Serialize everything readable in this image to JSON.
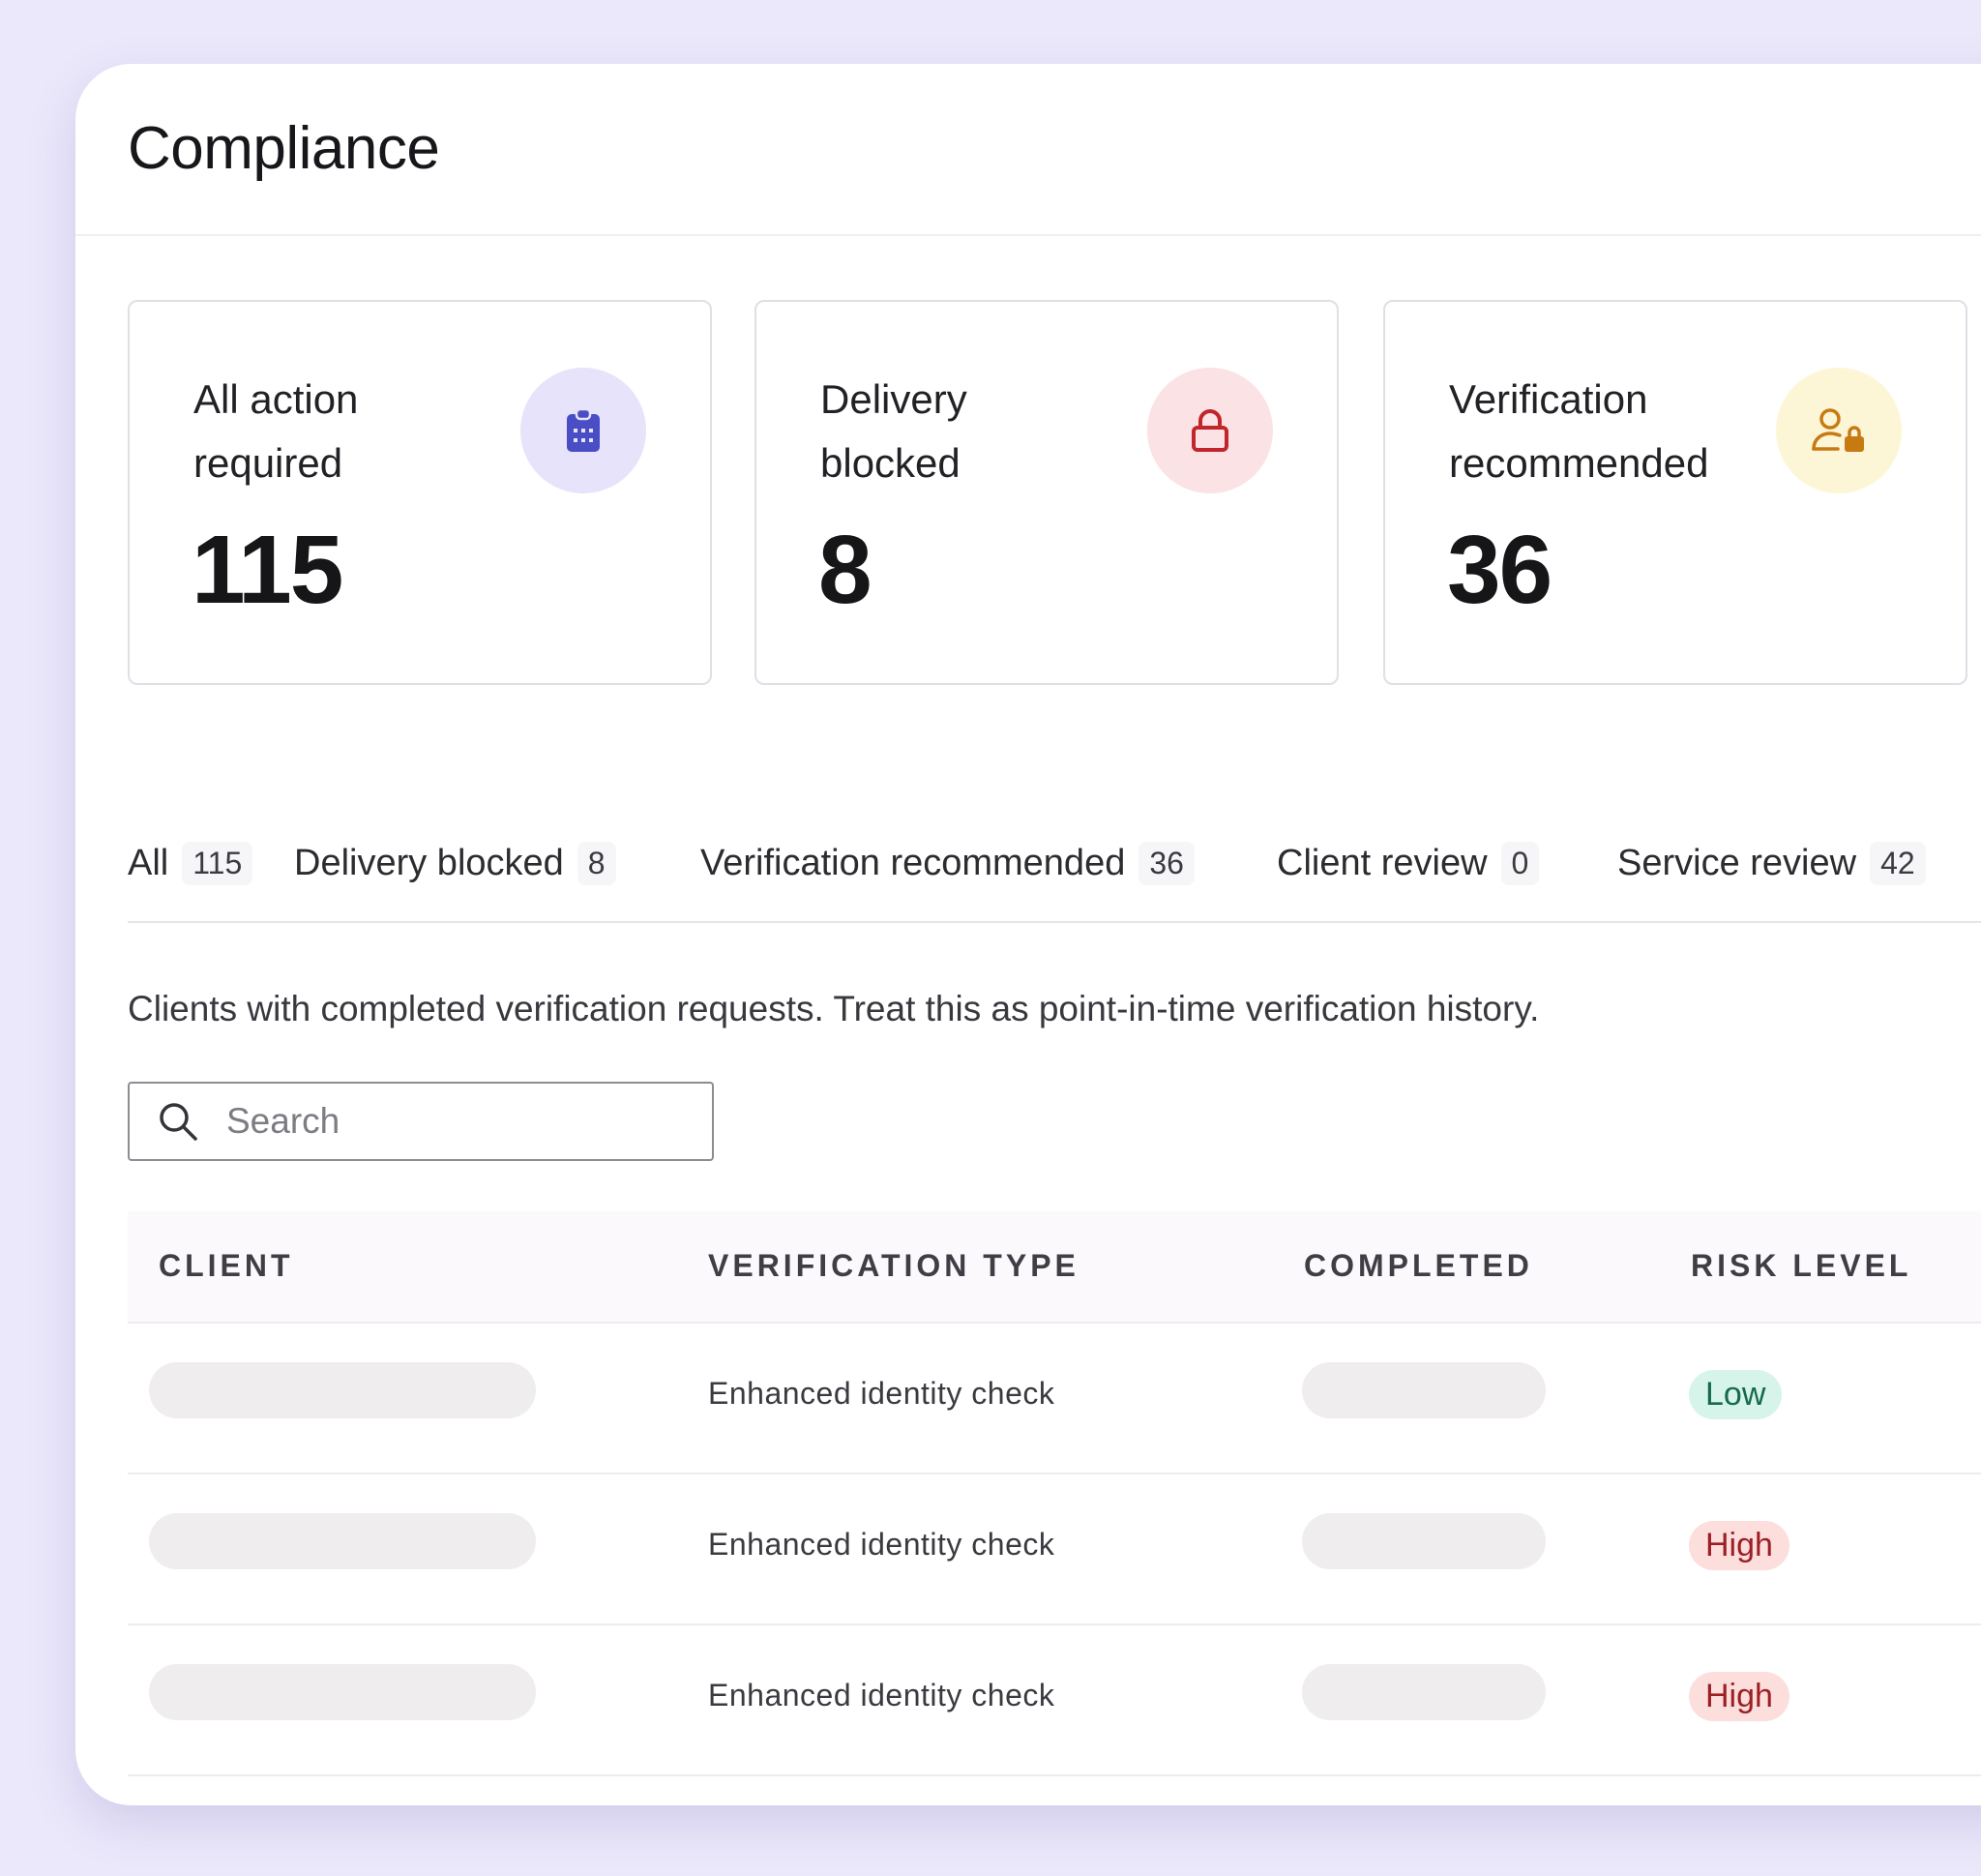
{
  "page": {
    "title": "Compliance"
  },
  "summary_cards": [
    {
      "label": "All action required",
      "value": "115",
      "icon": "clipboard-icon",
      "accent": "#4a4ec4"
    },
    {
      "label": "Delivery blocked",
      "value": "8",
      "icon": "lock-icon",
      "accent": "#c0262c"
    },
    {
      "label": "Verification recommended",
      "value": "36",
      "icon": "user-lock-icon",
      "accent": "#c87a12"
    }
  ],
  "tabs": [
    {
      "label": "All",
      "count": "115"
    },
    {
      "label": "Delivery blocked",
      "count": "8"
    },
    {
      "label": "Verification recommended",
      "count": "36"
    },
    {
      "label": "Client review",
      "count": "0"
    },
    {
      "label": "Service review",
      "count": "42"
    }
  ],
  "description": "Clients with completed verification requests. Treat this as point-in-time verification history.",
  "search": {
    "placeholder": "Search",
    "value": ""
  },
  "table": {
    "columns": [
      "CLIENT",
      "VERIFICATION TYPE",
      "COMPLETED",
      "RISK LEVEL"
    ],
    "rows": [
      {
        "verification_type": "Enhanced identity check",
        "risk_level": "Low"
      },
      {
        "verification_type": "Enhanced identity check",
        "risk_level": "High"
      },
      {
        "verification_type": "Enhanced identity check",
        "risk_level": "High"
      }
    ]
  },
  "colors": {
    "background": "#ebe8fb",
    "risk_low_bg": "#d6f4ea",
    "risk_low_text": "#16694e",
    "risk_high_bg": "#fcdedd",
    "risk_high_text": "#9c1f24"
  }
}
